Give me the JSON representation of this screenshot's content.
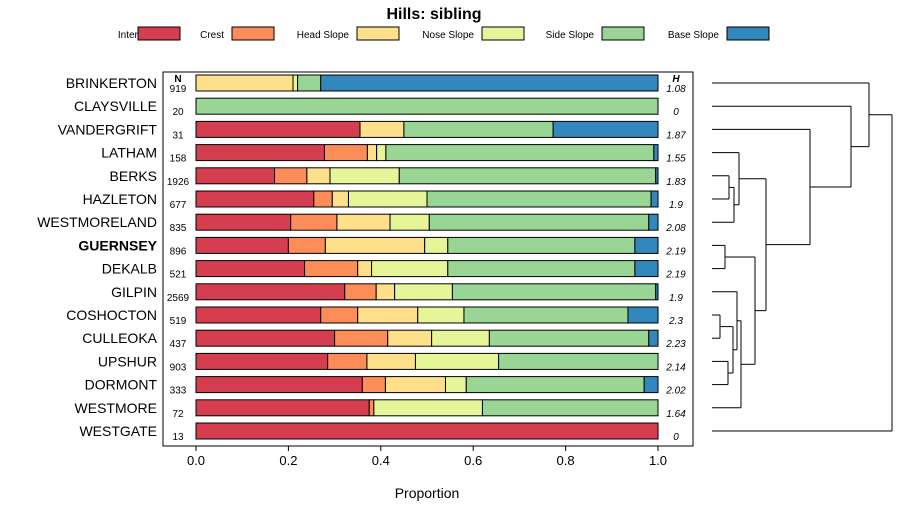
{
  "chart_data": {
    "type": "bar",
    "stacked": true,
    "orientation": "horizontal",
    "title": "Hills: sibling",
    "xlabel": "Proportion",
    "xlim": [
      0,
      1
    ],
    "xticks": [
      "0.0",
      "0.2",
      "0.4",
      "0.6",
      "0.8",
      "1.0"
    ],
    "n_header": "N",
    "h_header": "H",
    "highlight": "GUERNSEY",
    "legend": [
      {
        "name": "Interfluve",
        "color": "#d53e4f"
      },
      {
        "name": "Crest",
        "color": "#fc8d59"
      },
      {
        "name": "Head Slope",
        "color": "#fee08b"
      },
      {
        "name": "Nose Slope",
        "color": "#e6f598"
      },
      {
        "name": "Side Slope",
        "color": "#99d594"
      },
      {
        "name": "Base Slope",
        "color": "#3288bd"
      }
    ],
    "rows": [
      {
        "name": "BRINKERTON",
        "n": "919",
        "h": "1.08",
        "values": [
          0.0,
          0.0,
          0.21,
          0.01,
          0.05,
          0.73
        ]
      },
      {
        "name": "CLAYSVILLE",
        "n": "20",
        "h": "0",
        "values": [
          0.0,
          0.0,
          0.0,
          0.0,
          1.0,
          0.0
        ]
      },
      {
        "name": "VANDERGRIFT",
        "n": "31",
        "h": "1.87",
        "values": [
          0.355,
          0.0,
          0.095,
          0.0,
          0.323,
          0.227
        ]
      },
      {
        "name": "LATHAM",
        "n": "158",
        "h": "1.55",
        "values": [
          0.278,
          0.093,
          0.02,
          0.02,
          0.58,
          0.009
        ]
      },
      {
        "name": "BERKS",
        "n": "1926",
        "h": "1.83",
        "values": [
          0.17,
          0.07,
          0.05,
          0.15,
          0.555,
          0.005
        ]
      },
      {
        "name": "HAZLETON",
        "n": "677",
        "h": "1.9",
        "values": [
          0.255,
          0.04,
          0.035,
          0.17,
          0.485,
          0.015
        ]
      },
      {
        "name": "WESTMORELAND",
        "n": "835",
        "h": "2.08",
        "values": [
          0.205,
          0.1,
          0.115,
          0.085,
          0.475,
          0.02
        ]
      },
      {
        "name": "GUERNSEY",
        "n": "896",
        "h": "2.19",
        "values": [
          0.2,
          0.08,
          0.215,
          0.05,
          0.405,
          0.05
        ]
      },
      {
        "name": "DEKALB",
        "n": "521",
        "h": "2.19",
        "values": [
          0.235,
          0.115,
          0.03,
          0.165,
          0.405,
          0.05
        ]
      },
      {
        "name": "GILPIN",
        "n": "2569",
        "h": "1.9",
        "values": [
          0.322,
          0.068,
          0.04,
          0.125,
          0.44,
          0.005
        ]
      },
      {
        "name": "COSHOCTON",
        "n": "519",
        "h": "2.3",
        "values": [
          0.27,
          0.08,
          0.13,
          0.1,
          0.355,
          0.065
        ]
      },
      {
        "name": "CULLEOKA",
        "n": "437",
        "h": "2.23",
        "values": [
          0.3,
          0.115,
          0.095,
          0.125,
          0.345,
          0.02
        ]
      },
      {
        "name": "UPSHUR",
        "n": "903",
        "h": "2.14",
        "values": [
          0.285,
          0.085,
          0.105,
          0.18,
          0.345,
          0.0
        ]
      },
      {
        "name": "DORMONT",
        "n": "333",
        "h": "2.02",
        "values": [
          0.36,
          0.05,
          0.13,
          0.045,
          0.385,
          0.03
        ]
      },
      {
        "name": "WESTMORE",
        "n": "72",
        "h": "1.64",
        "values": [
          0.375,
          0.01,
          0.0,
          0.235,
          0.38,
          0.0
        ]
      },
      {
        "name": "WESTGATE",
        "n": "13",
        "h": "0",
        "values": [
          1.0,
          0.0,
          0.0,
          0.0,
          0.0,
          0.0
        ]
      }
    ]
  }
}
